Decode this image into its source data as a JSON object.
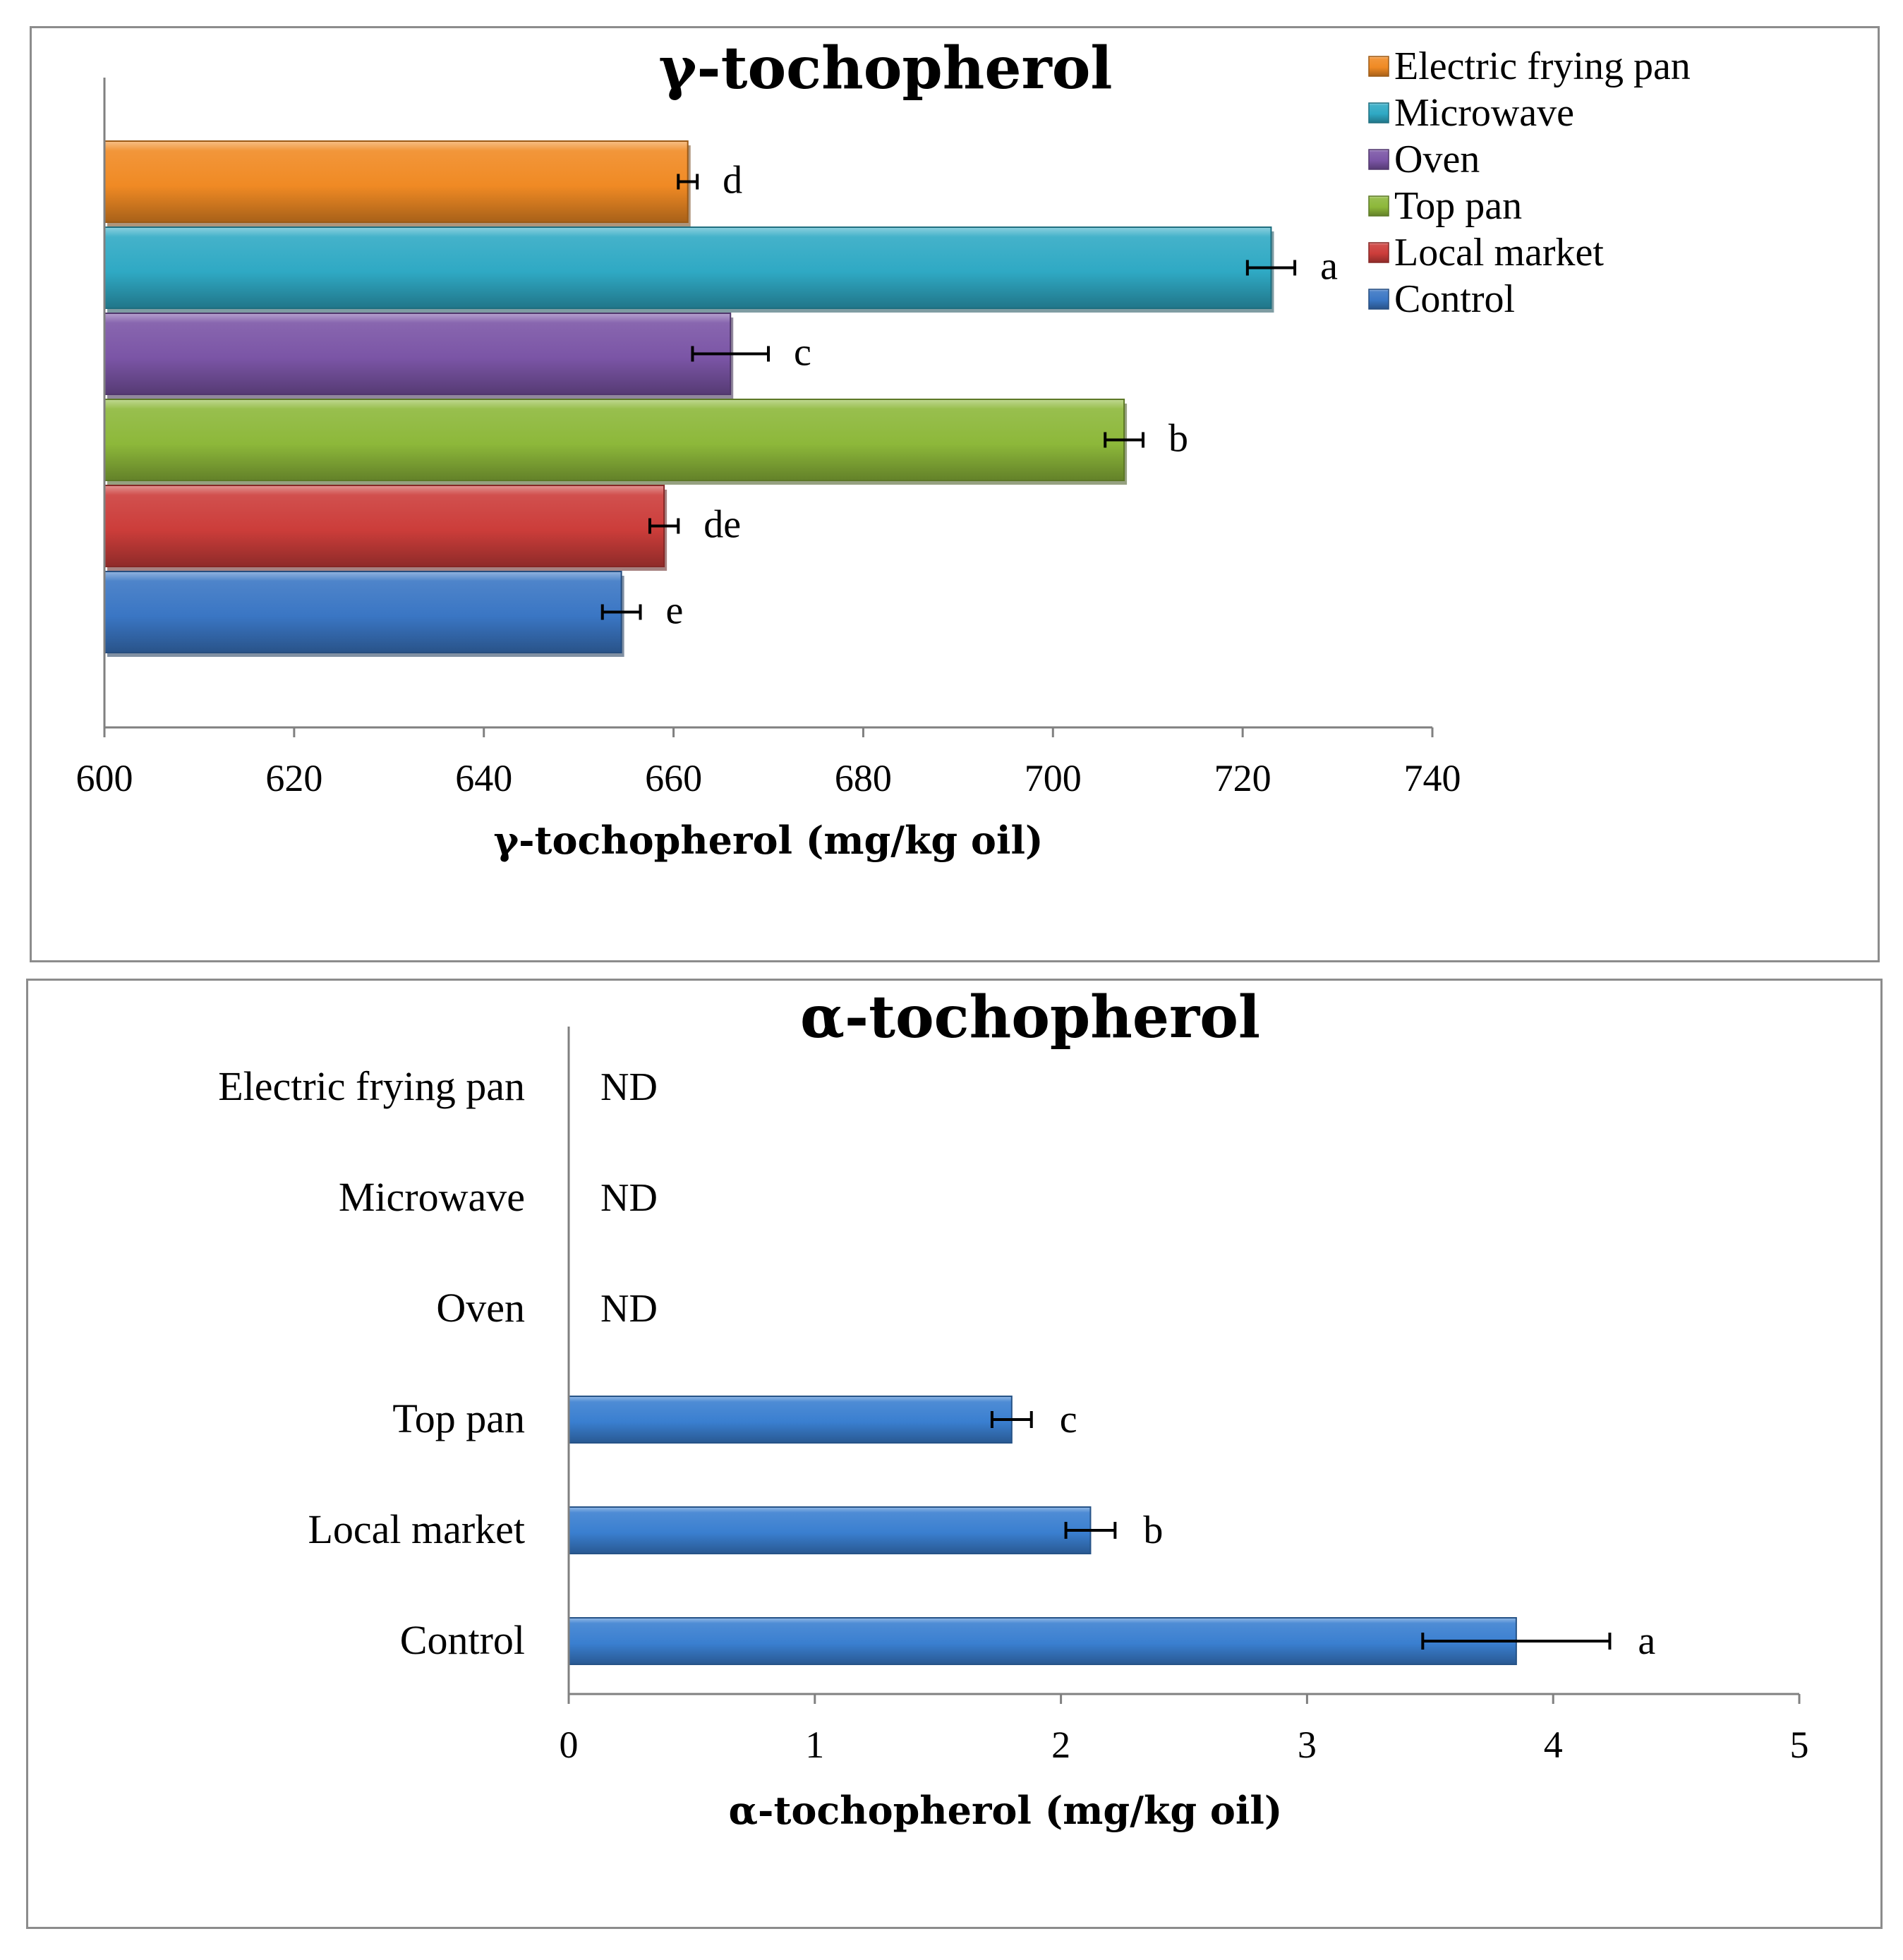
{
  "chart_data": [
    {
      "type": "bar",
      "orientation": "horizontal",
      "title": "γ-tochopherol",
      "xlabel": "γ-tochopherol  (mg/kg oil)",
      "ylabel": "",
      "xlim": [
        600,
        740
      ],
      "xticks": [
        "600",
        "620",
        "640",
        "660",
        "680",
        "700",
        "720",
        "740"
      ],
      "legend_position": "top-right",
      "series": [
        {
          "name": "Electric frying pan",
          "value": 661.5,
          "error": 1.0,
          "significance": "d",
          "color": "#f08a24"
        },
        {
          "name": "Microwave",
          "value": 723,
          "error": 2.5,
          "significance": "a",
          "color": "#2fa9c4"
        },
        {
          "name": "Oven",
          "value": 666,
          "error": 4.0,
          "significance": "c",
          "color": "#7b55a6"
        },
        {
          "name": "Top pan",
          "value": 707.5,
          "error": 2.0,
          "significance": "b",
          "color": "#8db83a"
        },
        {
          "name": "Local market",
          "value": 659,
          "error": 1.5,
          "significance": "de",
          "color": "#cc3d3a"
        },
        {
          "name": "Control",
          "value": 654.5,
          "error": 2.0,
          "significance": "e",
          "color": "#3a76c4"
        }
      ]
    },
    {
      "type": "bar",
      "orientation": "horizontal",
      "title": "α-tochopherol",
      "xlabel": "α-tochopherol  (mg/kg oil)",
      "ylabel": "",
      "xlim": [
        0,
        5
      ],
      "xticks": [
        "0",
        "1",
        "2",
        "3",
        "4",
        "5"
      ],
      "categories": [
        "Electric frying pan",
        "Microwave",
        "Oven",
        "Top pan",
        "Local market",
        "Control"
      ],
      "values": [
        null,
        null,
        null,
        1.8,
        2.12,
        3.85
      ],
      "errors": [
        null,
        null,
        null,
        0.08,
        0.1,
        0.38
      ],
      "labels": [
        "ND",
        "ND",
        "ND",
        "c",
        "b",
        "a"
      ],
      "color": "#3a7fd0"
    }
  ]
}
